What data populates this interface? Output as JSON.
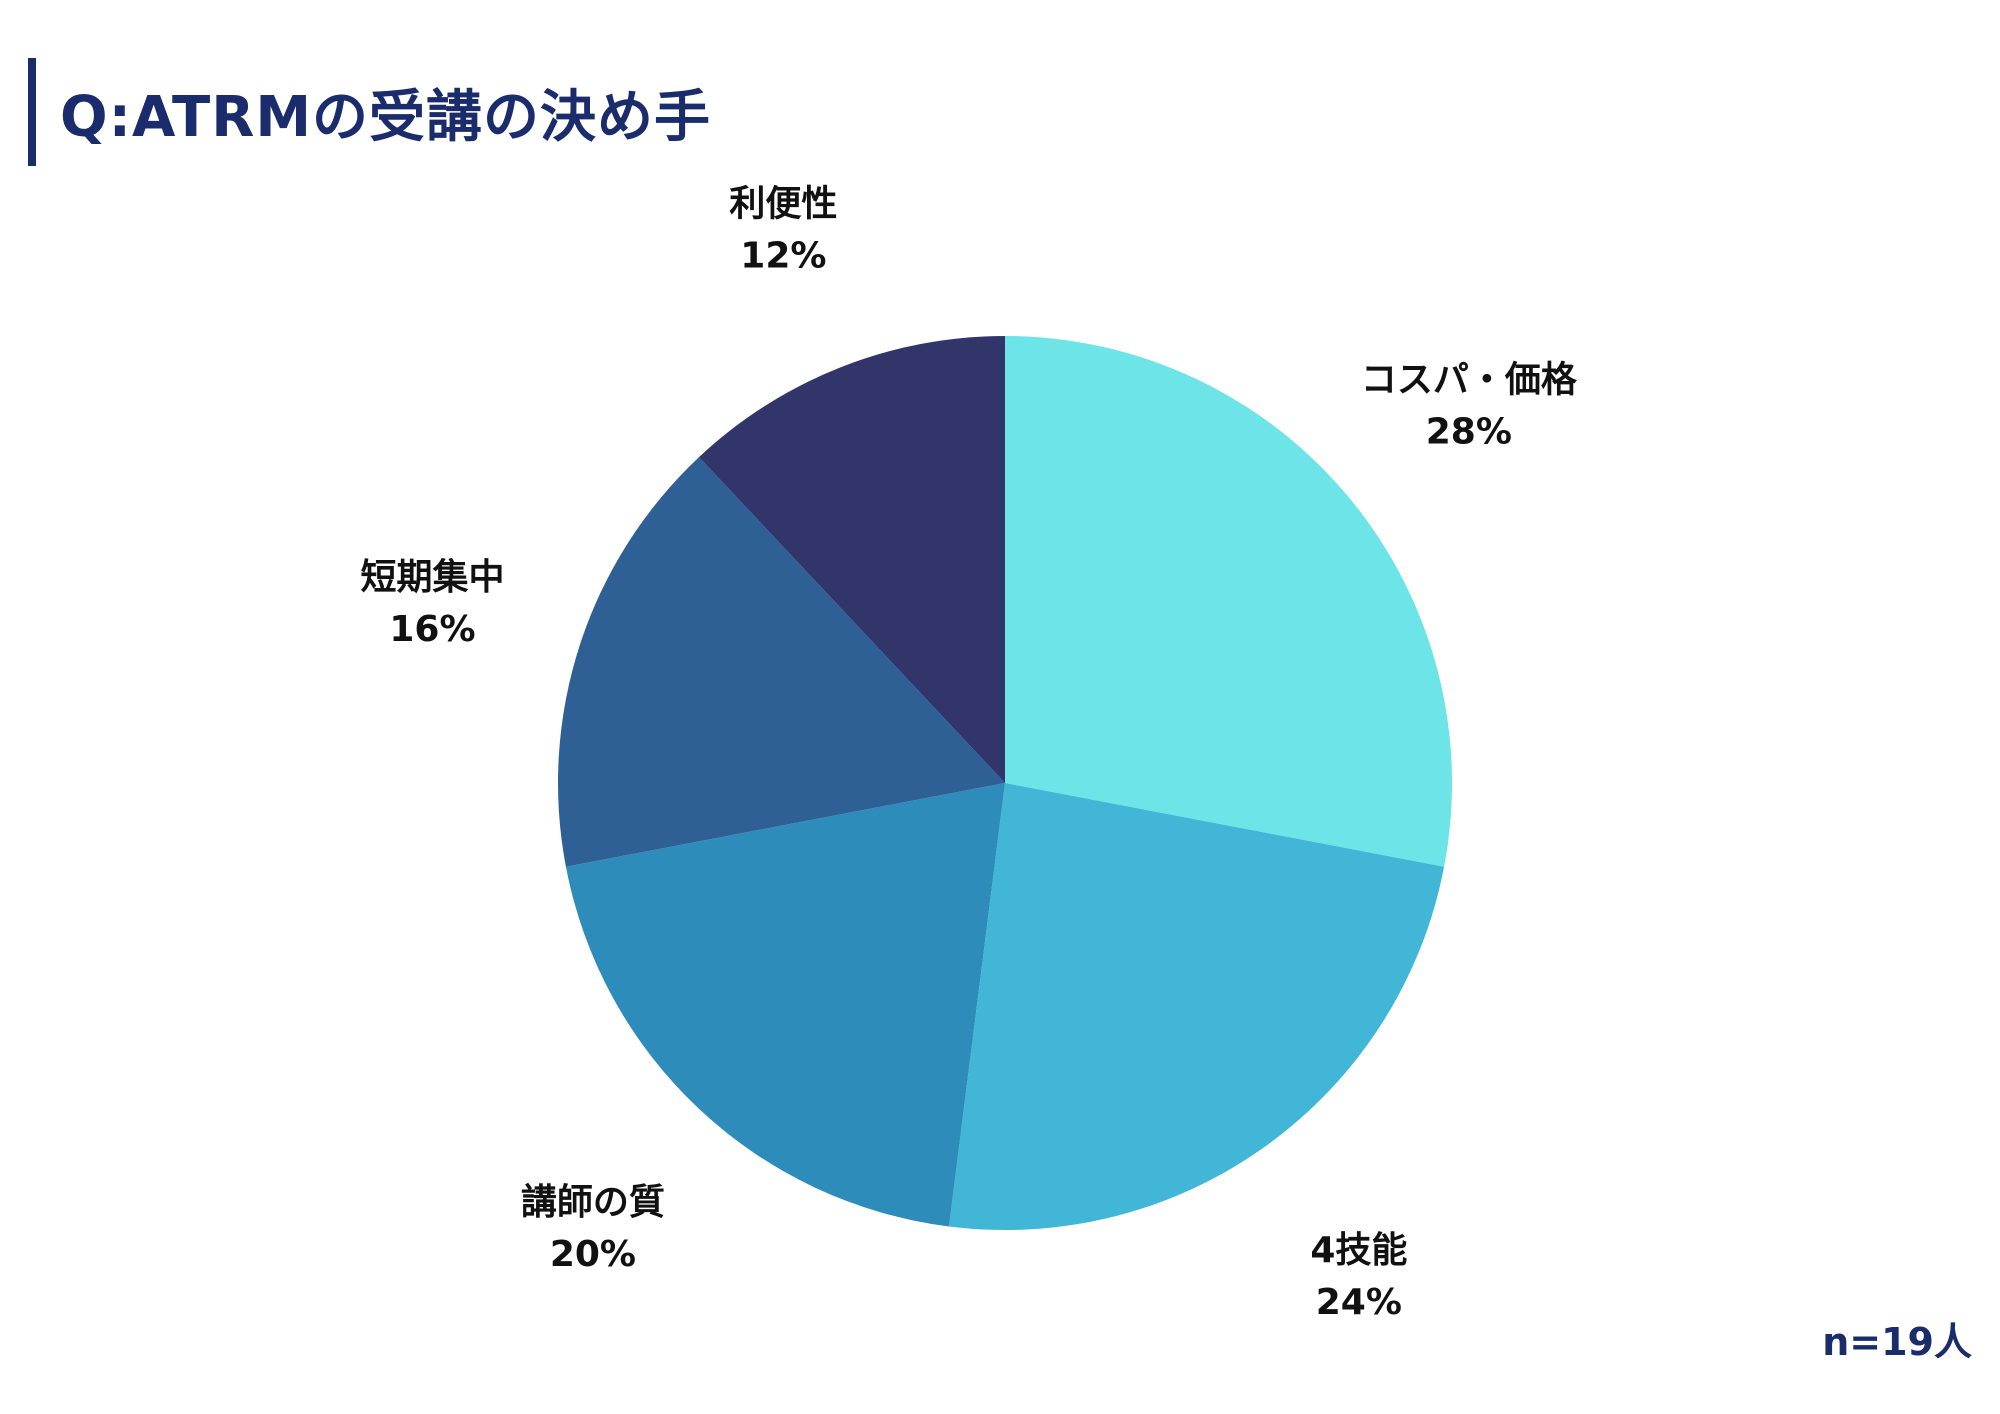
{
  "title": "Q:ATRMの受講の決め手",
  "footnote": "n=19人",
  "colors": {
    "title": "#1a2c6b",
    "label": "#111111"
  },
  "chart_data": {
    "type": "pie",
    "title": "Q:ATRMの受講の決め手",
    "start": "12 o'clock",
    "direction": "clockwise",
    "slices": [
      {
        "label": "コスパ・価格",
        "value": 28,
        "display": "28%",
        "color": "#6ce4e8"
      },
      {
        "label": "4技能",
        "value": 24,
        "display": "24%",
        "color": "#42b6d6"
      },
      {
        "label": "講師の質",
        "value": 20,
        "display": "20%",
        "color": "#2e8cba"
      },
      {
        "label": "短期集中",
        "value": 16,
        "display": "16%",
        "color": "#2e6096"
      },
      {
        "label": "利便性",
        "value": 12,
        "display": "12%",
        "color": "#31356a"
      }
    ]
  }
}
